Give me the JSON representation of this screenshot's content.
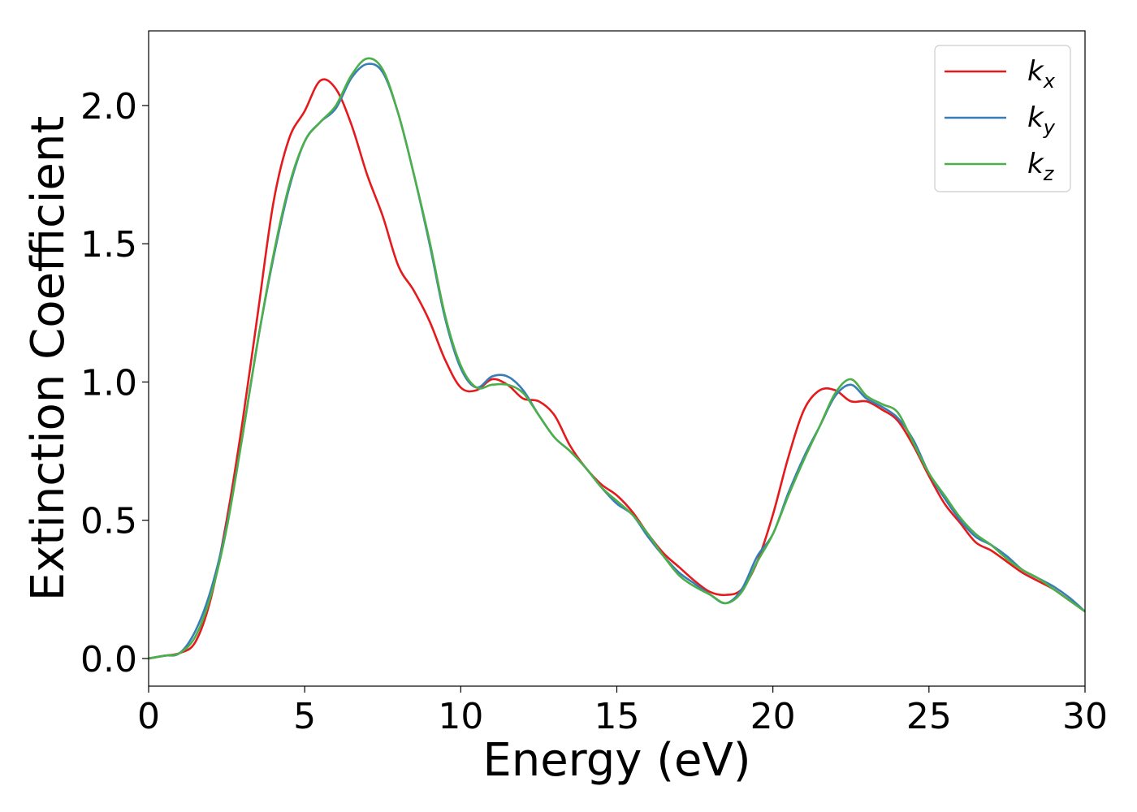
{
  "chart_data": {
    "type": "line",
    "xlabel": "Energy (eV)",
    "ylabel": "Extinction Coefficient",
    "xlim": [
      0,
      30
    ],
    "ylim": [
      -0.1,
      2.27
    ],
    "xticks": [
      0,
      5,
      10,
      15,
      20,
      25,
      30
    ],
    "xtick_labels": [
      "0",
      "5",
      "10",
      "15",
      "20",
      "25",
      "30"
    ],
    "yticks": [
      0.0,
      0.5,
      1.0,
      1.5,
      2.0
    ],
    "ytick_labels": [
      "0.0",
      "0.5",
      "1.0",
      "1.5",
      "2.0"
    ],
    "grid": false,
    "legend_position": "top-right",
    "series": [
      {
        "name": "k_x",
        "label_main": "k",
        "label_sub": "x",
        "color": "#e41a1c",
        "x": [
          0,
          0.5,
          1.0,
          1.5,
          2.0,
          2.5,
          3.0,
          3.5,
          4.0,
          4.5,
          5.0,
          5.5,
          6.0,
          6.5,
          7.0,
          7.5,
          8.0,
          8.5,
          9.0,
          9.5,
          10.0,
          10.5,
          11.0,
          11.5,
          12.0,
          12.5,
          13.0,
          13.5,
          14.0,
          14.5,
          15.0,
          15.5,
          16.0,
          16.5,
          17.0,
          17.5,
          18.0,
          18.5,
          19.0,
          19.5,
          20.0,
          20.5,
          21.0,
          21.5,
          22.0,
          22.5,
          23.0,
          23.5,
          24.0,
          24.5,
          25.0,
          25.5,
          26.0,
          26.5,
          27.0,
          27.5,
          28.0,
          28.5,
          29.0,
          29.5,
          30.0
        ],
        "y": [
          0.0,
          0.01,
          0.02,
          0.06,
          0.22,
          0.5,
          0.85,
          1.25,
          1.65,
          1.88,
          1.98,
          2.09,
          2.06,
          1.93,
          1.75,
          1.6,
          1.42,
          1.33,
          1.22,
          1.08,
          0.98,
          0.97,
          1.01,
          0.99,
          0.94,
          0.93,
          0.88,
          0.77,
          0.69,
          0.63,
          0.59,
          0.53,
          0.45,
          0.38,
          0.33,
          0.28,
          0.24,
          0.23,
          0.25,
          0.35,
          0.52,
          0.73,
          0.9,
          0.97,
          0.97,
          0.93,
          0.93,
          0.9,
          0.86,
          0.77,
          0.66,
          0.56,
          0.49,
          0.42,
          0.39,
          0.35,
          0.31,
          0.28,
          0.25,
          0.21,
          0.17
        ]
      },
      {
        "name": "k_y",
        "label_main": "k",
        "label_sub": "y",
        "color": "#377eb8",
        "x": [
          0,
          0.5,
          1.0,
          1.5,
          2.0,
          2.5,
          3.0,
          3.5,
          4.0,
          4.5,
          5.0,
          5.5,
          6.0,
          6.5,
          7.0,
          7.5,
          8.0,
          8.5,
          9.0,
          9.5,
          10.0,
          10.5,
          11.0,
          11.5,
          12.0,
          12.5,
          13.0,
          13.5,
          14.0,
          14.5,
          15.0,
          15.5,
          16.0,
          16.5,
          17.0,
          17.5,
          18.0,
          18.5,
          19.0,
          19.5,
          20.0,
          20.5,
          21.0,
          21.5,
          22.0,
          22.5,
          23.0,
          23.5,
          24.0,
          24.5,
          25.0,
          25.5,
          26.0,
          26.5,
          27.0,
          27.5,
          28.0,
          28.5,
          29.0,
          29.5,
          30.0
        ],
        "y": [
          0.0,
          0.01,
          0.02,
          0.1,
          0.25,
          0.48,
          0.8,
          1.15,
          1.45,
          1.7,
          1.87,
          1.94,
          1.99,
          2.1,
          2.15,
          2.12,
          1.97,
          1.75,
          1.5,
          1.23,
          1.05,
          0.98,
          1.02,
          1.02,
          0.97,
          0.88,
          0.8,
          0.75,
          0.69,
          0.62,
          0.56,
          0.52,
          0.44,
          0.37,
          0.31,
          0.27,
          0.23,
          0.2,
          0.25,
          0.37,
          0.45,
          0.6,
          0.73,
          0.84,
          0.95,
          0.99,
          0.94,
          0.91,
          0.87,
          0.79,
          0.67,
          0.58,
          0.5,
          0.44,
          0.41,
          0.37,
          0.32,
          0.29,
          0.26,
          0.22,
          0.17
        ]
      },
      {
        "name": "k_z",
        "label_main": "k",
        "label_sub": "z",
        "color": "#4daf4a",
        "x": [
          0,
          0.5,
          1.0,
          1.5,
          2.0,
          2.5,
          3.0,
          3.5,
          4.0,
          4.5,
          5.0,
          5.5,
          6.0,
          6.5,
          7.0,
          7.5,
          8.0,
          8.5,
          9.0,
          9.5,
          10.0,
          10.5,
          11.0,
          11.5,
          12.0,
          12.5,
          13.0,
          13.5,
          14.0,
          14.5,
          15.0,
          15.5,
          16.0,
          16.5,
          17.0,
          17.5,
          18.0,
          18.5,
          19.0,
          19.5,
          20.0,
          20.5,
          21.0,
          21.5,
          22.0,
          22.5,
          23.0,
          23.5,
          24.0,
          24.5,
          25.0,
          25.5,
          26.0,
          26.5,
          27.0,
          27.5,
          28.0,
          28.5,
          29.0,
          29.5,
          30.0
        ],
        "y": [
          0.0,
          0.01,
          0.02,
          0.08,
          0.23,
          0.47,
          0.8,
          1.15,
          1.46,
          1.71,
          1.87,
          1.94,
          2.0,
          2.11,
          2.17,
          2.13,
          1.97,
          1.75,
          1.51,
          1.24,
          1.06,
          0.98,
          0.99,
          0.99,
          0.96,
          0.88,
          0.8,
          0.75,
          0.69,
          0.62,
          0.57,
          0.52,
          0.45,
          0.37,
          0.3,
          0.26,
          0.23,
          0.2,
          0.24,
          0.35,
          0.45,
          0.59,
          0.72,
          0.84,
          0.96,
          1.01,
          0.95,
          0.92,
          0.89,
          0.78,
          0.67,
          0.59,
          0.51,
          0.45,
          0.41,
          0.36,
          0.32,
          0.29,
          0.25,
          0.21,
          0.17
        ]
      }
    ]
  }
}
